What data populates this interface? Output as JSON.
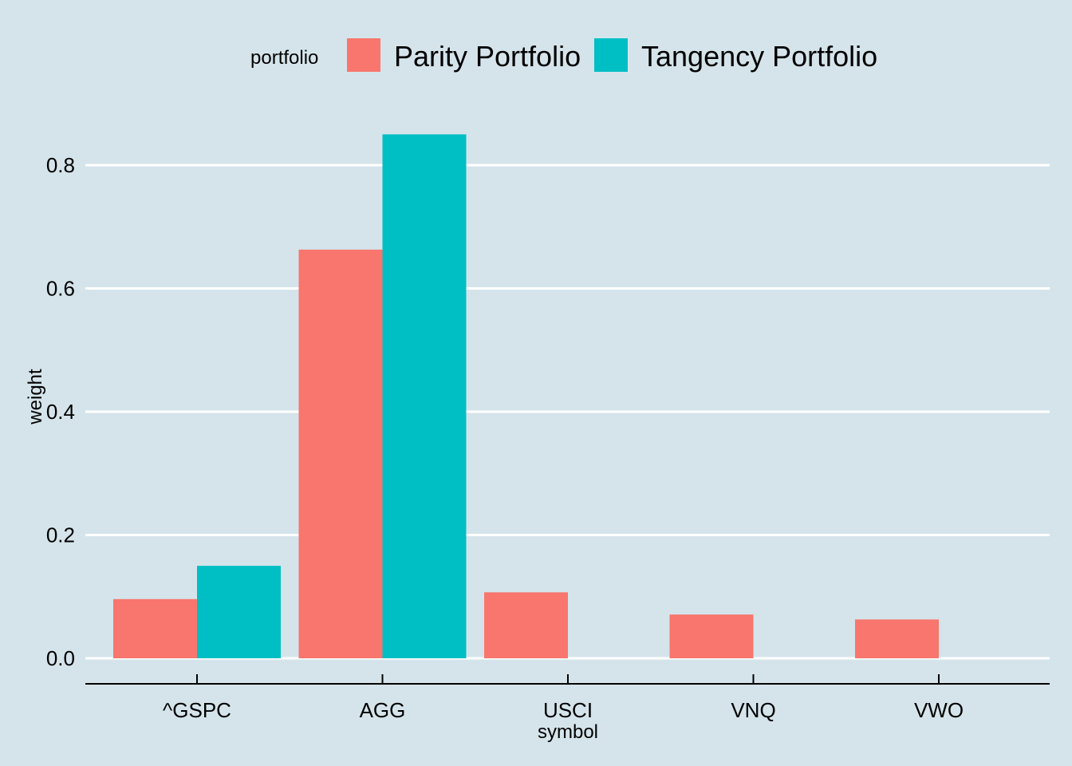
{
  "chart_data": {
    "type": "bar",
    "title": "",
    "xlabel": "symbol",
    "ylabel": "weight",
    "categories": [
      "^GSPC",
      "AGG",
      "USCI",
      "VNQ",
      "VWO"
    ],
    "series": [
      {
        "name": "Parity Portfolio",
        "color": "#f8766d",
        "values": [
          0.096,
          0.663,
          0.107,
          0.071,
          0.063
        ]
      },
      {
        "name": "Tangency Portfolio",
        "color": "#00bfc4",
        "values": [
          0.15,
          0.85,
          0.0,
          0.0,
          0.0
        ]
      }
    ],
    "ylim": [
      0,
      0.8
    ],
    "yticks": [
      0.0,
      0.2,
      0.4,
      0.6,
      0.8
    ],
    "ytick_labels": [
      "0.0",
      "0.2",
      "0.4",
      "0.6",
      "0.8"
    ],
    "grid": "horizontal",
    "legend": {
      "title": "portfolio",
      "position": "top"
    },
    "background": "#d5e4eb",
    "grid_color": "#ffffff"
  }
}
